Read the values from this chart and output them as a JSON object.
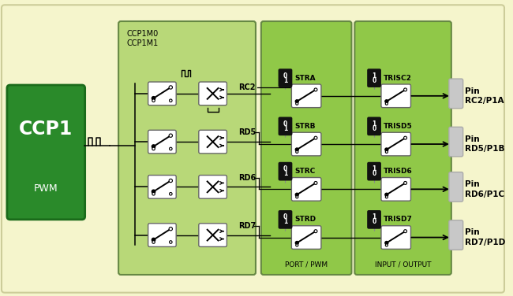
{
  "bg_outer": "#f5f5cc",
  "bg_inner_main": "#b8d878",
  "bg_port": "#90c848",
  "bg_io": "#90c848",
  "ccp1_green": "#2a8a2a",
  "pin_labels": [
    "RC2",
    "RD5",
    "RD6",
    "RD7"
  ],
  "str_labels": [
    "STRA",
    "STRB",
    "STRC",
    "STRD"
  ],
  "tris_labels": [
    "TRISC2",
    "TRISD5",
    "TRISD6",
    "TRISD7"
  ],
  "pin_out_labels": [
    "Pin\nRC2/P1A",
    "Pin\nRD5/P1B",
    "Pin\nRD6/P1C",
    "Pin\nRD7/P1D"
  ],
  "ccp1m_label": "CCP1M0\nCCP1M1",
  "port_pwm_label": "PORT / PWM",
  "io_label": "INPUT / OUTPUT",
  "ccp1_label": "CCP1",
  "pwm_label": "PWM",
  "str_pill": [
    "0",
    "1"
  ],
  "tris_pill": [
    "1",
    "0"
  ]
}
